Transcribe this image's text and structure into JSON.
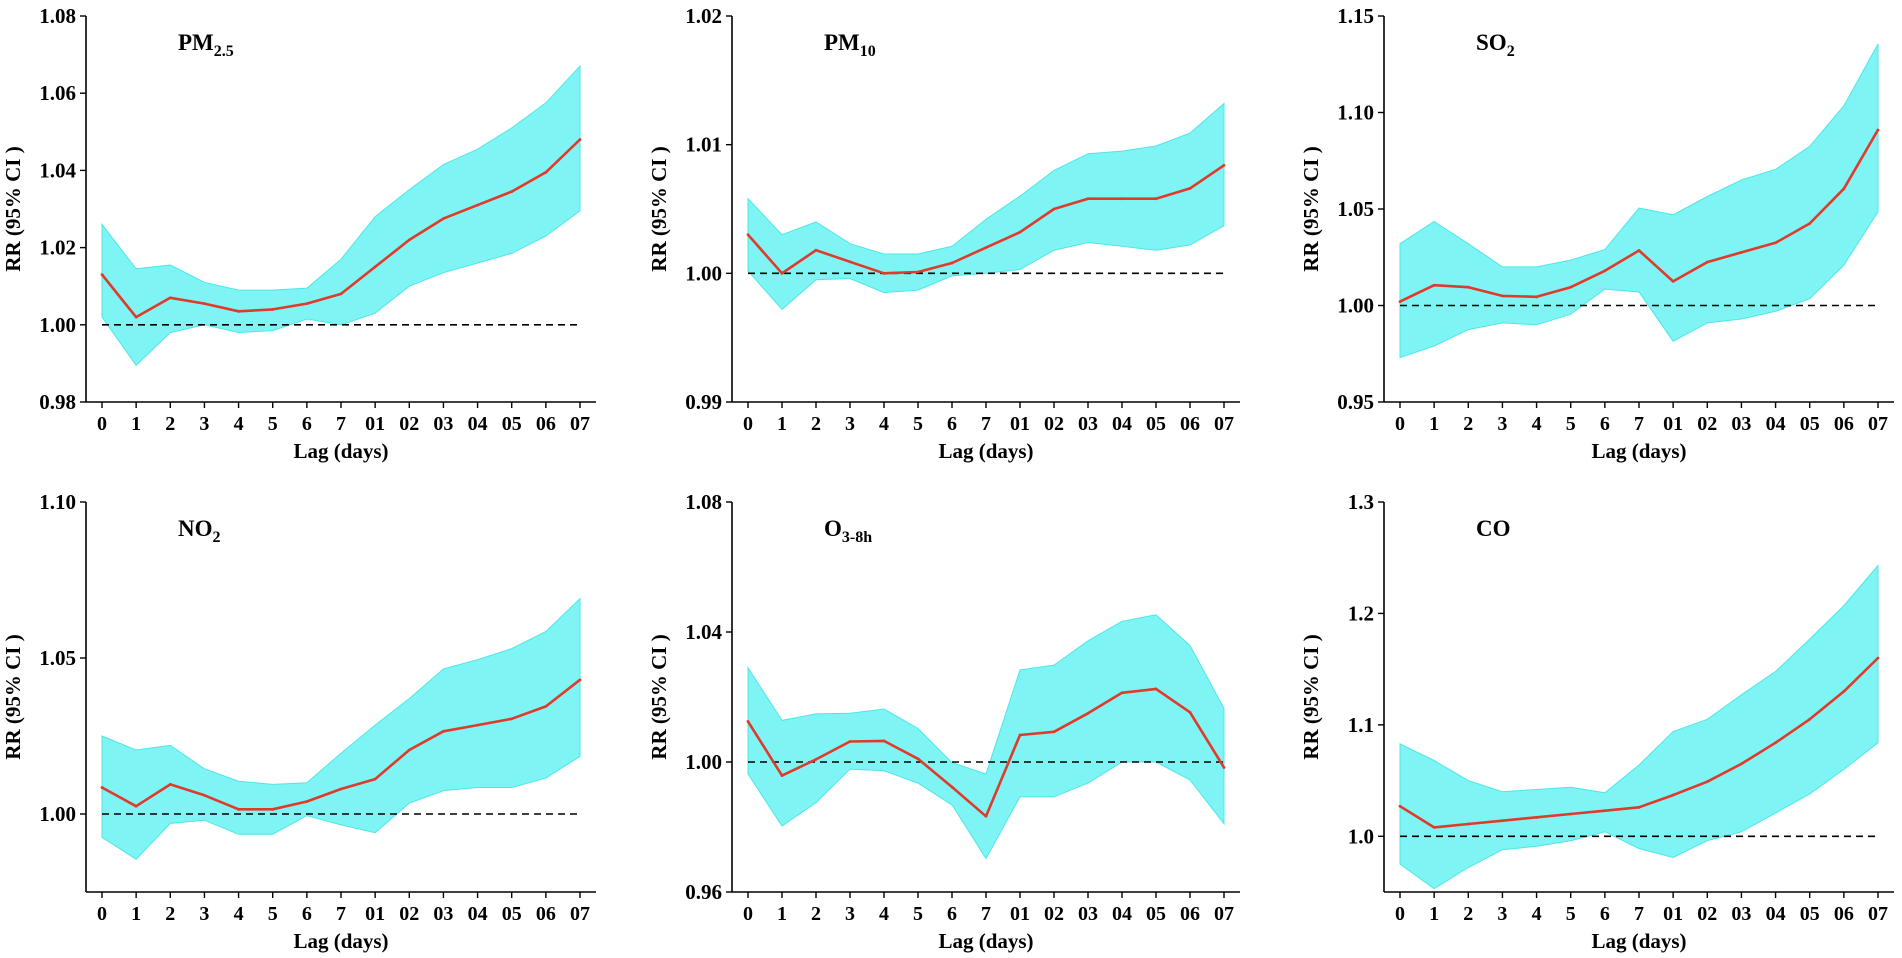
{
  "colors": {
    "ci_fill": "#7ff4f4",
    "ci_edge": "#4fe6e6",
    "line": "#e03a2a",
    "reference": "#000000",
    "axis": "#000000"
  },
  "chart_data": [
    {
      "type": "line",
      "title_main": "PM",
      "title_sub": "2.5",
      "xlabel": "Lag (days)",
      "ylabel": "RR (95% CI )",
      "categories": [
        "0",
        "1",
        "2",
        "3",
        "4",
        "5",
        "6",
        "7",
        "01",
        "02",
        "03",
        "04",
        "05",
        "06",
        "07"
      ],
      "ylim": [
        0.98,
        1.08
      ],
      "yticks": [
        "0.98",
        "1.00",
        "1.02",
        "1.04",
        "1.06",
        "1.08"
      ],
      "reference": 1.0,
      "series": [
        {
          "name": "RR",
          "values": [
            1.013,
            1.002,
            1.007,
            1.0055,
            1.0035,
            1.004,
            1.0055,
            1.008,
            1.015,
            1.022,
            1.0275,
            1.031,
            1.0345,
            1.0395,
            1.048
          ]
        },
        {
          "name": "Lower CI",
          "values": [
            1.002,
            0.9895,
            0.998,
            1.0,
            0.998,
            0.9985,
            1.0015,
            1.0,
            1.003,
            1.01,
            1.0135,
            1.016,
            1.0185,
            1.023,
            1.0295
          ]
        },
        {
          "name": "Upper CI",
          "values": [
            1.026,
            1.0145,
            1.0155,
            1.011,
            1.009,
            1.009,
            1.0095,
            1.017,
            1.028,
            1.035,
            1.0415,
            1.0455,
            1.051,
            1.0575,
            1.067
          ]
        }
      ]
    },
    {
      "type": "line",
      "title_main": "PM",
      "title_sub": "10",
      "xlabel": "Lag (days)",
      "ylabel": "RR (95% CI )",
      "categories": [
        "0",
        "1",
        "2",
        "3",
        "4",
        "5",
        "6",
        "7",
        "01",
        "02",
        "03",
        "04",
        "05",
        "06",
        "07"
      ],
      "ylim": [
        0.99,
        1.02
      ],
      "yticks": [
        "0.99",
        "1.00",
        "1.01",
        "1.02"
      ],
      "reference": 1.0,
      "series": [
        {
          "name": "RR",
          "values": [
            1.003,
            1.0,
            1.0018,
            1.0009,
            1.0,
            1.0001,
            1.0008,
            1.002,
            1.0032,
            1.005,
            1.0058,
            1.0058,
            1.0058,
            1.0066,
            1.0084
          ]
        },
        {
          "name": "Lower CI",
          "values": [
            1.0002,
            0.9972,
            0.9995,
            0.9996,
            0.9985,
            0.9987,
            0.9998,
            1.0,
            1.0003,
            1.0018,
            1.0024,
            1.0021,
            1.0018,
            1.0022,
            1.0037
          ]
        },
        {
          "name": "Upper CI",
          "values": [
            1.0058,
            1.003,
            1.004,
            1.0023,
            1.0015,
            1.0015,
            1.0021,
            1.0042,
            1.006,
            1.008,
            1.0093,
            1.0095,
            1.0099,
            1.0109,
            1.0132
          ]
        }
      ]
    },
    {
      "type": "line",
      "title_main": "SO",
      "title_sub": "2",
      "xlabel": "Lag (days)",
      "ylabel": "RR (95% CI )",
      "categories": [
        "0",
        "1",
        "2",
        "3",
        "4",
        "5",
        "6",
        "7",
        "01",
        "02",
        "03",
        "04",
        "05",
        "06",
        "07"
      ],
      "ylim": [
        0.95,
        1.15
      ],
      "yticks": [
        "0.95",
        "1.00",
        "1.05",
        "1.10",
        "1.15"
      ],
      "reference": 1.0,
      "series": [
        {
          "name": "RR",
          "values": [
            1.002,
            1.0105,
            1.0095,
            1.005,
            1.0045,
            1.0095,
            1.018,
            1.0285,
            1.0125,
            1.0225,
            1.0275,
            1.0325,
            1.0425,
            1.0605,
            1.091
          ]
        },
        {
          "name": "Lower CI",
          "values": [
            0.973,
            0.979,
            0.9875,
            0.991,
            0.99,
            0.9955,
            1.0085,
            1.007,
            0.9815,
            0.991,
            0.993,
            0.997,
            1.0035,
            1.021,
            1.0485
          ]
        },
        {
          "name": "Upper CI",
          "values": [
            1.032,
            1.0435,
            1.032,
            1.02,
            1.02,
            1.0235,
            1.029,
            1.0505,
            1.047,
            1.0565,
            1.065,
            1.0705,
            1.0825,
            1.1035,
            1.1355
          ]
        }
      ]
    },
    {
      "type": "line",
      "title_main": "NO",
      "title_sub": "2",
      "xlabel": "Lag (days)",
      "ylabel": "RR (95% CI )",
      "categories": [
        "0",
        "1",
        "2",
        "3",
        "4",
        "5",
        "6",
        "7",
        "01",
        "02",
        "03",
        "04",
        "05",
        "06",
        "07"
      ],
      "ylim": [
        0.975,
        1.1
      ],
      "yticks": [
        "1.00",
        "1.05",
        "1.10"
      ],
      "reference": 1.0,
      "series": [
        {
          "name": "RR",
          "values": [
            1.0085,
            1.0025,
            1.0095,
            1.006,
            1.0015,
            1.0015,
            1.004,
            1.008,
            1.0112,
            1.0205,
            1.0265,
            1.0285,
            1.0305,
            1.0345,
            1.043
          ]
        },
        {
          "name": "Lower CI",
          "values": [
            0.9925,
            0.9855,
            0.997,
            0.998,
            0.9935,
            0.9935,
            0.9995,
            0.9965,
            0.994,
            1.0035,
            1.0075,
            1.0085,
            1.0085,
            1.0115,
            1.0185
          ]
        },
        {
          "name": "Upper CI",
          "values": [
            1.025,
            1.0205,
            1.022,
            1.0145,
            1.0105,
            1.0095,
            1.01,
            1.0195,
            1.0285,
            1.037,
            1.0465,
            1.0495,
            1.053,
            1.0585,
            1.069
          ]
        }
      ]
    },
    {
      "type": "line",
      "title_main": "O",
      "title_sub": "3-8h",
      "xlabel": "Lag (days)",
      "ylabel": "RR (95% CI )",
      "categories": [
        "0",
        "1",
        "2",
        "3",
        "4",
        "5",
        "6",
        "7",
        "01",
        "02",
        "03",
        "04",
        "05",
        "06",
        "07"
      ],
      "ylim": [
        0.96,
        1.08
      ],
      "yticks": [
        "0.96",
        "1.00",
        "1.04",
        "1.08"
      ],
      "reference": 1.0,
      "series": [
        {
          "name": "RR",
          "values": [
            1.0125,
            0.9958,
            1.0008,
            1.0063,
            1.0065,
            1.001,
            0.9923,
            0.9833,
            1.0083,
            1.0093,
            1.015,
            1.0213,
            1.0225,
            1.0153,
            0.9983
          ]
        },
        {
          "name": "Lower CI",
          "values": [
            0.9963,
            0.9803,
            0.9875,
            0.9978,
            0.9973,
            0.9935,
            0.9868,
            0.9703,
            0.9893,
            0.9893,
            0.9935,
            1.0,
            1.0,
            0.9945,
            0.981
          ]
        },
        {
          "name": "Upper CI",
          "values": [
            1.029,
            1.0128,
            1.0148,
            1.015,
            1.0163,
            1.0103,
            0.9998,
            0.9963,
            1.0283,
            1.0298,
            1.0373,
            1.0433,
            1.0453,
            1.0358,
            1.0165
          ]
        }
      ]
    },
    {
      "type": "line",
      "title_main": "CO",
      "title_sub": "",
      "xlabel": "Lag (days)",
      "ylabel": "RR (95% CI )",
      "categories": [
        "0",
        "1",
        "2",
        "3",
        "4",
        "5",
        "6",
        "7",
        "01",
        "02",
        "03",
        "04",
        "05",
        "06",
        "07"
      ],
      "ylim": [
        0.95,
        1.3
      ],
      "yticks": [
        "1.0",
        "1.1",
        "1.2",
        "1.3"
      ],
      "reference": 1.0,
      "series": [
        {
          "name": "RR",
          "values": [
            1.027,
            1.008,
            1.011,
            1.014,
            1.017,
            1.02,
            1.023,
            1.026,
            1.037,
            1.049,
            1.065,
            1.084,
            1.105,
            1.13,
            1.16
          ]
        },
        {
          "name": "Lower CI",
          "values": [
            0.975,
            0.953,
            0.972,
            0.988,
            0.991,
            0.996,
            1.004,
            0.989,
            0.981,
            0.996,
            1.004,
            1.021,
            1.038,
            1.06,
            1.084
          ]
        },
        {
          "name": "Upper CI",
          "values": [
            1.083,
            1.068,
            1.05,
            1.04,
            1.042,
            1.044,
            1.039,
            1.064,
            1.094,
            1.105,
            1.127,
            1.148,
            1.177,
            1.207,
            1.243
          ]
        }
      ]
    }
  ]
}
